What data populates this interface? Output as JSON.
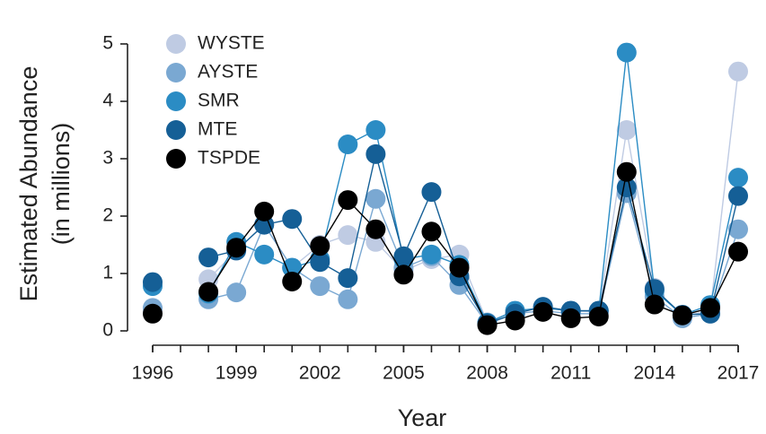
{
  "chart_data": {
    "type": "line",
    "x_label": "Year",
    "y_label": [
      "Estimated Abundance",
      "(in millions)"
    ],
    "x": [
      1996,
      1997,
      1998,
      1999,
      2000,
      2001,
      2002,
      2003,
      2004,
      2005,
      2006,
      2007,
      2008,
      2009,
      2010,
      2011,
      2012,
      2013,
      2014,
      2015,
      2016,
      2017
    ],
    "series": [
      {
        "name": "WYSTE",
        "color": "#bfcbe3",
        "values": [
          0.35,
          null,
          0.9,
          1.4,
          1.85,
          1.1,
          1.5,
          1.67,
          1.55,
          1.05,
          1.25,
          1.33,
          0.15,
          0.35,
          0.4,
          0.35,
          0.33,
          3.5,
          0.75,
          0.25,
          0.35,
          4.52
        ]
      },
      {
        "name": "AYSTE",
        "color": "#7aa8d2",
        "values": [
          0.4,
          null,
          0.55,
          0.67,
          1.85,
          1.1,
          0.78,
          0.55,
          2.3,
          1.1,
          1.3,
          0.8,
          0.12,
          0.3,
          0.35,
          0.3,
          0.3,
          2.4,
          0.6,
          0.22,
          0.3,
          1.77
        ]
      },
      {
        "name": "SMR",
        "color": "#2b8cc4",
        "values": [
          0.78,
          null,
          0.65,
          1.55,
          1.33,
          1.1,
          1.25,
          3.25,
          3.5,
          1.25,
          1.33,
          1.15,
          0.14,
          0.35,
          0.4,
          0.35,
          0.35,
          4.85,
          0.7,
          0.28,
          0.45,
          2.67
        ]
      },
      {
        "name": "MTE",
        "color": "#155f96",
        "values": [
          0.85,
          null,
          1.28,
          1.4,
          1.85,
          1.95,
          1.2,
          0.92,
          3.08,
          1.3,
          2.42,
          0.95,
          0.13,
          0.3,
          0.42,
          0.35,
          0.35,
          2.5,
          0.73,
          0.28,
          0.3,
          2.35
        ]
      },
      {
        "name": "TSPDE",
        "color": "#000000",
        "values": [
          0.3,
          null,
          0.68,
          1.45,
          2.08,
          0.86,
          1.48,
          2.28,
          1.77,
          0.98,
          1.73,
          1.1,
          0.1,
          0.18,
          0.33,
          0.22,
          0.25,
          2.77,
          0.46,
          0.27,
          0.4,
          1.38
        ]
      }
    ],
    "xlim": [
      1996,
      2017
    ],
    "xticks": [
      1996,
      1999,
      2002,
      2005,
      2008,
      2011,
      2014,
      2017
    ],
    "xminorticks": [
      1996,
      1997,
      1998,
      1999,
      2000,
      2001,
      2002,
      2003,
      2004,
      2005,
      2006,
      2007,
      2008,
      2009,
      2010,
      2011,
      2012,
      2013,
      2014,
      2015,
      2016,
      2017
    ],
    "ylim": [
      0,
      5
    ],
    "yticks": [
      0,
      1,
      2,
      3,
      4,
      5
    ],
    "legend": "top-left"
  }
}
